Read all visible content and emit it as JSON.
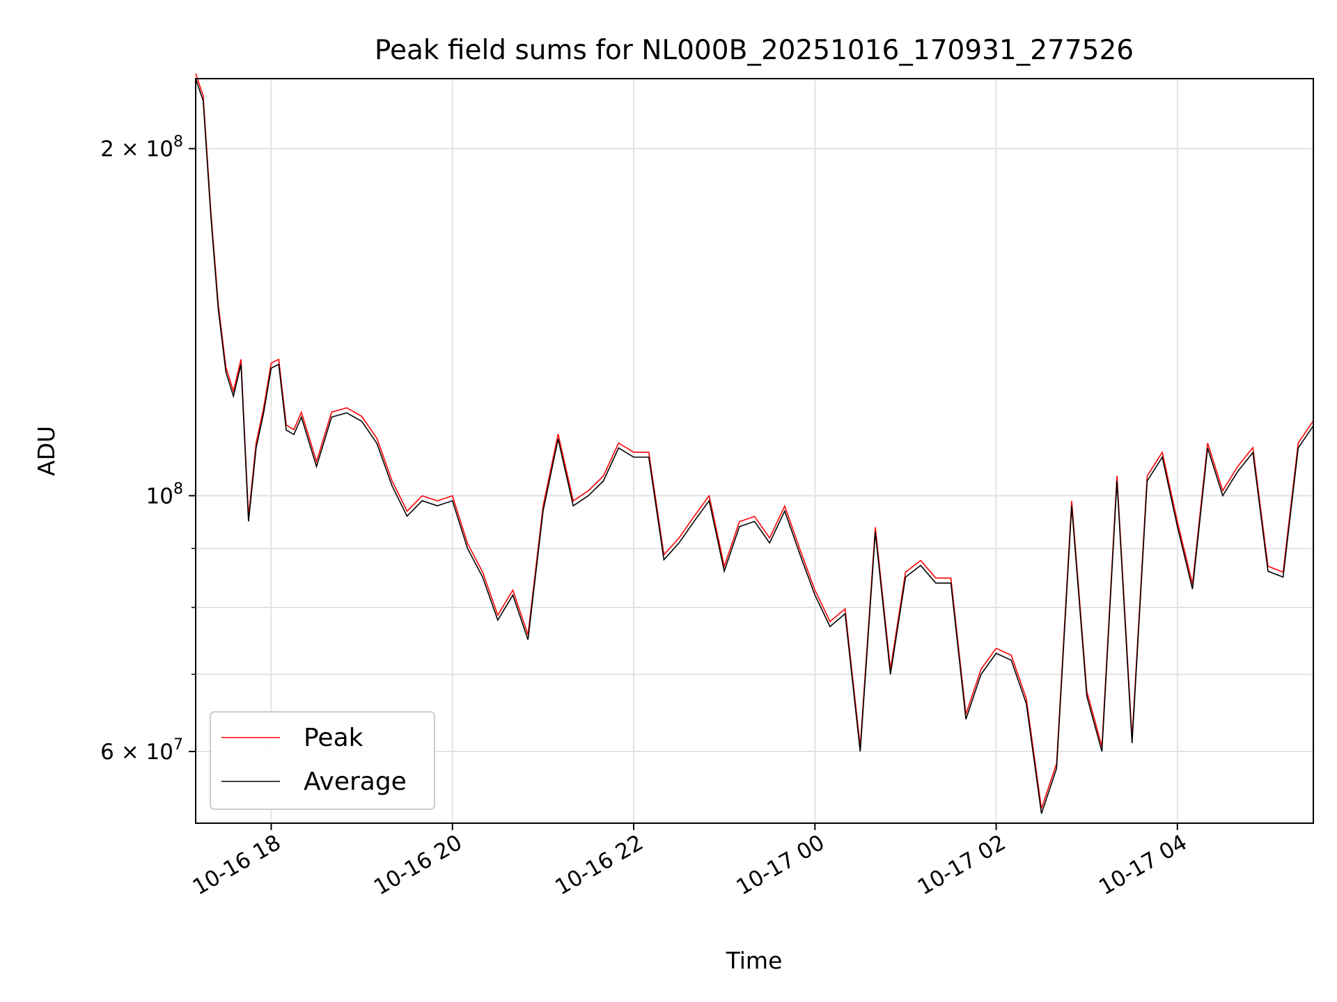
{
  "chart_data": {
    "type": "line",
    "title": "Peak field sums for NL000B_20251016_170931_277526",
    "xlabel": "Time",
    "ylabel": "ADU",
    "y_scale": "log",
    "ylim": [
      52000000,
      230000000
    ],
    "xlim": [
      "2025-10-16 17:10",
      "2025-10-17 05:30"
    ],
    "grid": true,
    "legend_position": "lower-left",
    "x_ticks": [
      {
        "time": "2025-10-16 18:00",
        "label": "10-16 18"
      },
      {
        "time": "2025-10-16 20:00",
        "label": "10-16 20"
      },
      {
        "time": "2025-10-16 22:00",
        "label": "10-16 22"
      },
      {
        "time": "2025-10-17 00:00",
        "label": "10-17 00"
      },
      {
        "time": "2025-10-17 02:00",
        "label": "10-17 02"
      },
      {
        "time": "2025-10-17 04:00",
        "label": "10-17 04"
      }
    ],
    "y_major_ticks": [
      {
        "value": 60000000,
        "mantissa": "6",
        "exponent": "7"
      },
      {
        "value": 100000000,
        "mantissa": "",
        "exponent": "8"
      },
      {
        "value": 200000000,
        "mantissa": "2",
        "exponent": "8"
      }
    ],
    "y_minor_ticks": [
      70000000,
      80000000,
      90000000
    ],
    "series": [
      {
        "name": "Peak",
        "color": "#ff0000"
      },
      {
        "name": "Average",
        "color": "#000000"
      }
    ],
    "x": [
      "2025-10-16 17:10",
      "2025-10-16 17:15",
      "2025-10-16 17:20",
      "2025-10-16 17:25",
      "2025-10-16 17:30",
      "2025-10-16 17:35",
      "2025-10-16 17:40",
      "2025-10-16 17:45",
      "2025-10-16 17:50",
      "2025-10-16 17:55",
      "2025-10-16 18:00",
      "2025-10-16 18:05",
      "2025-10-16 18:10",
      "2025-10-16 18:15",
      "2025-10-16 18:20",
      "2025-10-16 18:30",
      "2025-10-16 18:40",
      "2025-10-16 18:50",
      "2025-10-16 19:00",
      "2025-10-16 19:10",
      "2025-10-16 19:20",
      "2025-10-16 19:30",
      "2025-10-16 19:40",
      "2025-10-16 19:50",
      "2025-10-16 20:00",
      "2025-10-16 20:10",
      "2025-10-16 20:20",
      "2025-10-16 20:30",
      "2025-10-16 20:40",
      "2025-10-16 20:50",
      "2025-10-16 21:00",
      "2025-10-16 21:10",
      "2025-10-16 21:20",
      "2025-10-16 21:30",
      "2025-10-16 21:40",
      "2025-10-16 21:50",
      "2025-10-16 22:00",
      "2025-10-16 22:10",
      "2025-10-16 22:20",
      "2025-10-16 22:30",
      "2025-10-16 22:40",
      "2025-10-16 22:50",
      "2025-10-16 23:00",
      "2025-10-16 23:10",
      "2025-10-16 23:20",
      "2025-10-16 23:30",
      "2025-10-16 23:40",
      "2025-10-16 23:50",
      "2025-10-17 00:00",
      "2025-10-17 00:10",
      "2025-10-17 00:20",
      "2025-10-17 00:30",
      "2025-10-17 00:40",
      "2025-10-17 00:50",
      "2025-10-17 01:00",
      "2025-10-17 01:10",
      "2025-10-17 01:20",
      "2025-10-17 01:30",
      "2025-10-17 01:40",
      "2025-10-17 01:50",
      "2025-10-17 02:00",
      "2025-10-17 02:10",
      "2025-10-17 02:20",
      "2025-10-17 02:30",
      "2025-10-17 02:40",
      "2025-10-17 02:50",
      "2025-10-17 03:00",
      "2025-10-17 03:10",
      "2025-10-17 03:20",
      "2025-10-17 03:30",
      "2025-10-17 03:40",
      "2025-10-17 03:50",
      "2025-10-17 04:00",
      "2025-10-17 04:10",
      "2025-10-17 04:20",
      "2025-10-17 04:30",
      "2025-10-17 04:40",
      "2025-10-17 04:50",
      "2025-10-17 05:00",
      "2025-10-17 05:10",
      "2025-10-17 05:20",
      "2025-10-17 05:30"
    ],
    "values_average": [
      230000000,
      220000000,
      175000000,
      145000000,
      128000000,
      122000000,
      130000000,
      95000000,
      110000000,
      118000000,
      129000000,
      130000000,
      114000000,
      113000000,
      117000000,
      106000000,
      117000000,
      118000000,
      116000000,
      111000000,
      102000000,
      96000000,
      99000000,
      98000000,
      99000000,
      90000000,
      85000000,
      78000000,
      82000000,
      75000000,
      97000000,
      112000000,
      98000000,
      100000000,
      103000000,
      110000000,
      108000000,
      108000000,
      88000000,
      91000000,
      95000000,
      99000000,
      86000000,
      94000000,
      95000000,
      91000000,
      97000000,
      89000000,
      82000000,
      77000000,
      79000000,
      60000000,
      93000000,
      70000000,
      85000000,
      87000000,
      84000000,
      84000000,
      64000000,
      70000000,
      73000000,
      72000000,
      66000000,
      53000000,
      58000000,
      98000000,
      67000000,
      60000000,
      103000000,
      61000000,
      103000000,
      108000000,
      94000000,
      83000000,
      110000000,
      100000000,
      105000000,
      109000000,
      86000000,
      85000000,
      110000000,
      115000000
    ]
  }
}
